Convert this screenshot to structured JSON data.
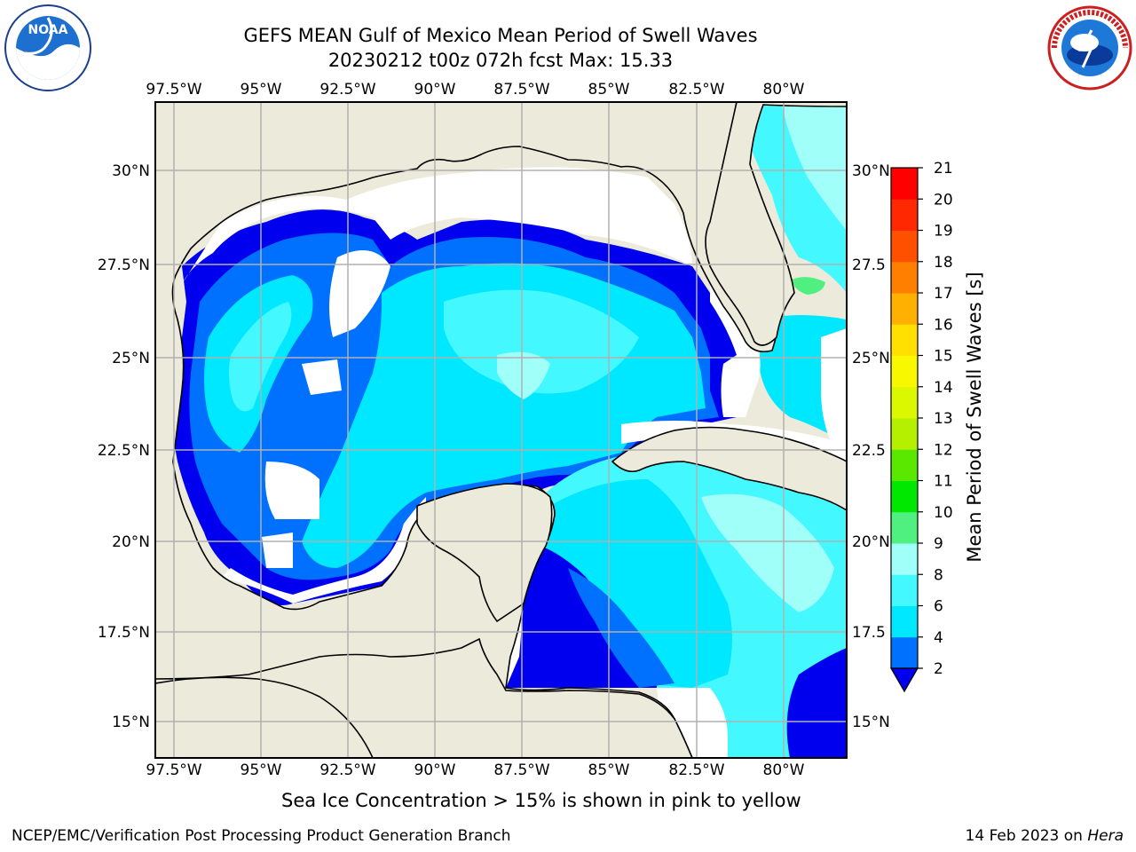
{
  "title_line1": "GEFS MEAN Gulf of Mexico Mean Period of Swell Waves",
  "title_line2": "20230212 t00z 072h fcst   Max: 15.33",
  "lon_labels": [
    "97.5°W",
    "95°W",
    "92.5°W",
    "90°W",
    "87.5°W",
    "85°W",
    "82.5°W",
    "80°W"
  ],
  "lat_labels_left": [
    "30°N",
    "27.5°N",
    "25°N",
    "22.5°N",
    "20°N",
    "17.5°N",
    "15°N"
  ],
  "lat_labels_right": [
    "30°N",
    "27.5",
    "25°N",
    "22.5",
    "20°N",
    "17.5",
    "15°N"
  ],
  "colorbar": {
    "label": "Mean Period of Swell Waves [s]",
    "ticks": [
      "2",
      "4",
      "6",
      "8",
      "9",
      "10",
      "11",
      "12",
      "13",
      "14",
      "15",
      "16",
      "17",
      "18",
      "19",
      "20",
      "21"
    ],
    "colors": [
      "#0000ee",
      "#0070ff",
      "#00e8ff",
      "#44f8ff",
      "#a0fff8",
      "#50f080",
      "#00e800",
      "#5ae800",
      "#b4f000",
      "#dcf800",
      "#f8f800",
      "#ffe000",
      "#ffb000",
      "#ff8000",
      "#ff5000",
      "#ff2800",
      "#ff0000"
    ]
  },
  "note": "Sea Ice Concentration > 15% is shown in pink to yellow",
  "footer_left": "NCEP/EMC/Verification Post Processing Product Generation Branch",
  "footer_right_prefix": "14 Feb 2023 on ",
  "footer_right_host": "Hera",
  "logos": {
    "left": "noaa-logo",
    "right": "nws-logo"
  },
  "colors": {
    "land": "#ecebdb",
    "grid": "#b0b0b0",
    "coast": "#000000"
  }
}
